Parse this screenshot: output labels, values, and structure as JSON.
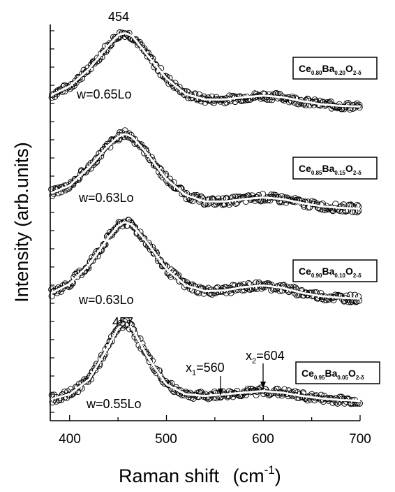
{
  "chart_data": {
    "type": "line",
    "title": "",
    "xlabel": "Raman shift",
    "xlabel_unit": "(cm",
    "xlabel_unit_sup": "-1",
    "xlabel_unit_close": ")",
    "ylabel": "Intensity (arb.units)",
    "xlim": [
      380,
      700
    ],
    "x_ticks": [
      "400",
      "500",
      "600",
      "700"
    ],
    "y_ticks_shown": false,
    "grid": false,
    "marker_style": "open circles (experimental)",
    "fit_line_color": "#ffffff",
    "data_color": "#000000",
    "x": [
      380,
      400,
      420,
      440,
      450,
      457,
      465,
      480,
      500,
      520,
      540,
      560,
      580,
      600,
      620,
      640,
      660,
      680,
      700
    ],
    "series": [
      {
        "composition": {
          "a": "Ce",
          "a_sub": "0.80",
          "b": "Ba",
          "b_sub": "0.20",
          "c": "O",
          "c_sub": "2-δ"
        },
        "width_label": "w=0.65Lo",
        "peak_label": "454",
        "values": [
          0.18,
          0.3,
          0.52,
          0.82,
          0.95,
          0.98,
          0.94,
          0.7,
          0.4,
          0.2,
          0.13,
          0.13,
          0.16,
          0.18,
          0.16,
          0.11,
          0.07,
          0.05,
          0.04
        ]
      },
      {
        "composition": {
          "a": "Ce",
          "a_sub": "0.85",
          "b": "Ba",
          "b_sub": "0.15",
          "c": "O",
          "c_sub": "2-δ"
        },
        "width_label": "w=0.63Lo",
        "peak_label": "",
        "values": [
          0.22,
          0.32,
          0.55,
          0.82,
          0.93,
          0.97,
          0.93,
          0.72,
          0.4,
          0.2,
          0.12,
          0.12,
          0.15,
          0.17,
          0.15,
          0.1,
          0.06,
          0.04,
          0.03
        ]
      },
      {
        "composition": {
          "a": "Ce",
          "a_sub": "0.90",
          "b": "Ba",
          "b_sub": "0.10",
          "c": "O",
          "c_sub": "2-δ"
        },
        "width_label": "w=0.63Lo",
        "peak_label": "",
        "values": [
          0.1,
          0.22,
          0.45,
          0.78,
          0.92,
          0.97,
          0.93,
          0.72,
          0.4,
          0.2,
          0.13,
          0.14,
          0.18,
          0.2,
          0.17,
          0.11,
          0.07,
          0.05,
          0.04
        ]
      },
      {
        "composition": {
          "a": "Ce",
          "a_sub": "0.95",
          "b": "Ba",
          "b_sub": "0.05",
          "c": "O",
          "c_sub": "2-δ"
        },
        "width_label": "w=0.55Lo",
        "peak_label": "457",
        "values": [
          0.04,
          0.1,
          0.28,
          0.68,
          0.9,
          0.97,
          0.9,
          0.56,
          0.22,
          0.1,
          0.08,
          0.1,
          0.12,
          0.14,
          0.12,
          0.08,
          0.05,
          0.03,
          0.02
        ]
      }
    ],
    "annotations": [
      {
        "label": "x",
        "sub": "1",
        "eq": "=560",
        "x": 560
      },
      {
        "label": "x",
        "sub": "2",
        "eq": "=604",
        "x": 604
      }
    ]
  }
}
